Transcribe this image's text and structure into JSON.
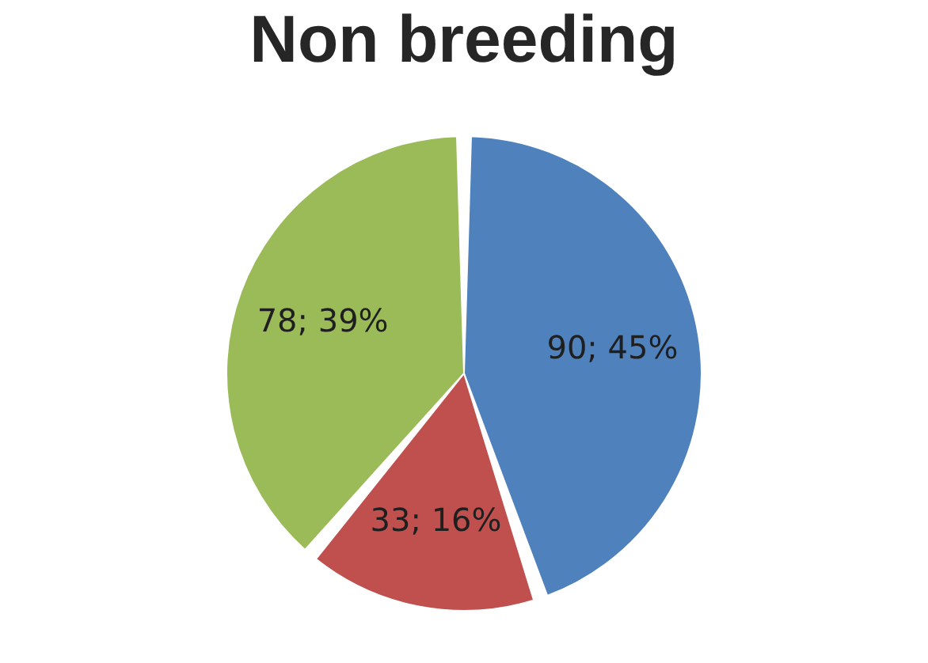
{
  "chart_data": {
    "type": "pie",
    "title": "Non breeding",
    "categories": [
      null,
      null,
      null
    ],
    "values": [
      90,
      33,
      78
    ],
    "value_labels": [
      "90; 45%",
      "33; 16%",
      "78; 39%"
    ],
    "colors": [
      "#4f81bd",
      "#c0504d",
      "#9bbb59"
    ]
  }
}
